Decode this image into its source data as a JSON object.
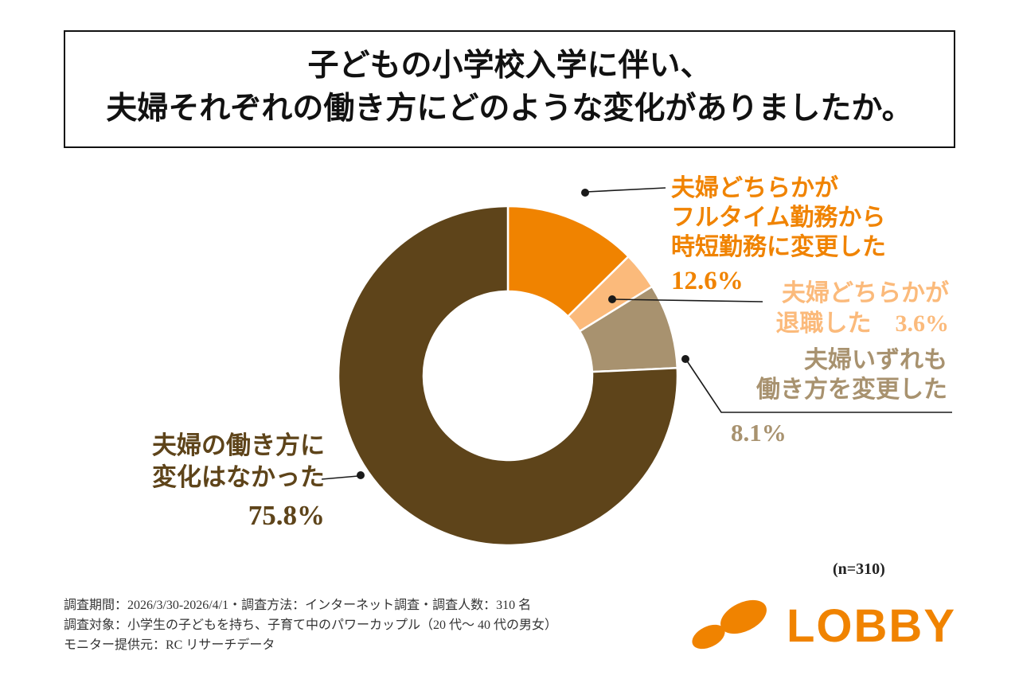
{
  "title": {
    "line1": "子どもの小学校入学に伴い、",
    "line2": "夫婦それぞれの働き方にどのような変化がありましたか。"
  },
  "chart_data": {
    "type": "pie",
    "subtype": "donut",
    "title": "子どもの小学校入学に伴い、夫婦それぞれの働き方にどのような変化がありましたか。",
    "start_angle_deg": 0,
    "direction": "clockwise",
    "sample_note": "(n=310)",
    "segments": [
      {
        "label": "夫婦どちらかがフルタイム勤務から時短勤務に変更した",
        "value": 12.6,
        "color": "#F08300"
      },
      {
        "label": "夫婦どちらかが退職した",
        "value": 3.6,
        "color": "#FBBA7B"
      },
      {
        "label": "夫婦いずれも働き方を変更した",
        "value": 8.1,
        "color": "#A8926F"
      },
      {
        "label": "夫婦の働き方に変化はなかった",
        "value": 75.8,
        "color": "#5E441A"
      }
    ]
  },
  "annotations": {
    "time_shortened": {
      "line1": "夫婦どちらかが",
      "line2": "フルタイム勤務から",
      "line3": "時短勤務に変更した",
      "pct": "12.6%"
    },
    "retired": {
      "line1": "夫婦どちらかが",
      "line2": "退職した　3.6%"
    },
    "both_changed": {
      "line1": "夫婦いずれも",
      "line2": "働き方を変更した",
      "pct": "8.1%"
    },
    "no_change": {
      "line1": "夫婦の働き方に",
      "line2": "変化はなかった",
      "pct": "75.8%"
    }
  },
  "footer": {
    "line1": "調査期間：2026/3/30-2026/4/1・調査方法：インターネット調査・調査人数：310 名",
    "line2": "調査対象：小学生の子どもを持ち、子育て中のパワーカップル（20 代〜 40 代の男女）",
    "line3": "モニター提供元：RC リサーチデータ"
  },
  "logo": {
    "text": "LOBBY",
    "color": "#F08300"
  }
}
